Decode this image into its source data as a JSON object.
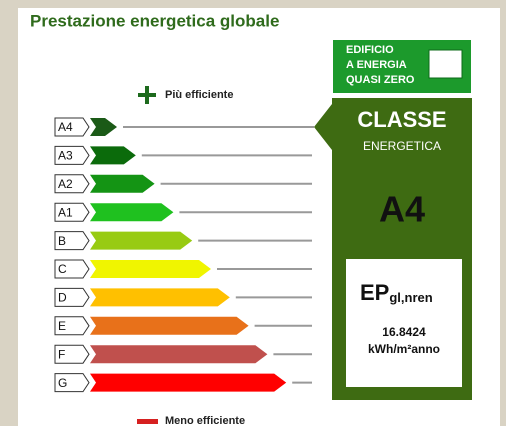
{
  "title": "Prestazione energetica globale",
  "nzeb": {
    "lines": [
      "EDIFICIO",
      "A ENERGIA",
      "QUASI ZERO"
    ]
  },
  "better_label": "Più efficiente",
  "worse_label": "Meno efficiente",
  "classes": [
    {
      "label": "A4",
      "color": "#1b5a17"
    },
    {
      "label": "A3",
      "color": "#0b6b0b"
    },
    {
      "label": "A2",
      "color": "#149414"
    },
    {
      "label": "A1",
      "color": "#1fc11f"
    },
    {
      "label": "B",
      "color": "#98cb12"
    },
    {
      "label": "C",
      "color": "#f0f500"
    },
    {
      "label": "D",
      "color": "#ffc000"
    },
    {
      "label": "E",
      "color": "#e8711a"
    },
    {
      "label": "F",
      "color": "#c0504d"
    },
    {
      "label": "G",
      "color": "#ff0000"
    }
  ],
  "panel": {
    "heading": "CLASSE",
    "subheading": "ENERGETICA",
    "class": "A4",
    "ep_main": "EP",
    "ep_sub": "gl,nren",
    "value": "16.8424",
    "unit": "kWh/m²anno"
  }
}
